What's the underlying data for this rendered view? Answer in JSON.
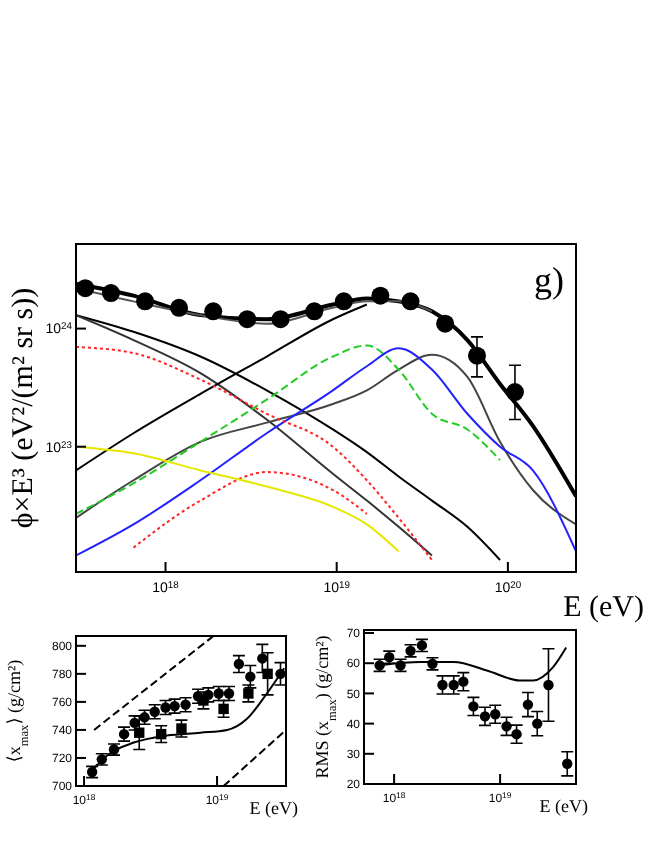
{
  "chart_data": [
    {
      "type": "line",
      "xlabel": "E (eV)",
      "ylabel": "ϕ×E³  (eV²/(m² sr s))",
      "annotations": [
        "g)"
      ],
      "log": "xy",
      "grid": false,
      "xlim": [
        3e+17,
        2.5e+20
      ],
      "ylim": [
        8.7e+21,
        5.2e+24
      ],
      "xticks": [
        {
          "value": 1e+18,
          "label": "10$^{18}$"
        },
        {
          "value": 1e+19,
          "label": "10$^{19}$"
        },
        {
          "value": 1e+20,
          "label": "10$^{20}$"
        }
      ],
      "yticks": [
        {
          "value": 1e+23,
          "label": "10$^{23}$"
        },
        {
          "value": 1e+24,
          "label": "10$^{24}$"
        }
      ],
      "x": [
        3e+17,
        6.5e+17,
        1.6e+18,
        3.9e+18,
        9.5e+18,
        1.5e+19,
        2.3e+19,
        3.6e+19,
        5.8e+19,
        9e+19,
        1.4e+20,
        2.5e+20
      ],
      "series": [
        {
          "color": "#000000",
          "values": [
            2.4e+24,
            1.9e+24,
            1.3e+24,
            1.2e+24,
            1.6e+24,
            1.8e+24,
            1.7e+24,
            1.4e+24,
            8e+23,
            3.4e+23,
            1.5e+23,
            3.8e+22
          ]
        },
        {
          "color": "#555555",
          "values": [
            2.2e+24,
            1.7e+24,
            1.3e+24,
            1.1e+24,
            1.5e+24,
            1.7e+24,
            1.7e+24,
            1.4e+24,
            null,
            null,
            null,
            null
          ]
        },
        {
          "color": "#000000",
          "values": [
            1.3e+24,
            9.4e+23,
            5.8e+23,
            3e+23,
            1.4e+23,
            9e+22,
            5.6e+22,
            3.5e+22,
            2.1e+22,
            1.1e+22,
            null,
            null
          ]
        },
        {
          "color": "#333333",
          "values": [
            1.3e+24,
            8e+23,
            4.2e+23,
            1.7e+23,
            5.9e+22,
            3.5e+22,
            2.1e+22,
            1.2e+22,
            null,
            null,
            null,
            null
          ]
        },
        {
          "color": "#000000",
          "values": [
            6.3e+22,
            1.3e+23,
            2.8e+23,
            5.8e+23,
            1.2e+24,
            1.6e+24,
            null,
            null,
            null,
            null,
            null,
            null
          ]
        },
        {
          "color": "#444444",
          "values": [
            2.5e+22,
            5.2e+22,
            1.1e+23,
            1.6e+23,
            2.3e+23,
            3e+23,
            4.5e+23,
            6e+23,
            3.9e+23,
            1.1e+23,
            4.3e+22,
            2.2e+22
          ]
        },
        {
          "color": "#22cc22",
          "line_style": "dashed",
          "values": [
            2.7e+22,
            4.9e+22,
            1.1e+23,
            2.5e+23,
            5.8e+23,
            7.2e+23,
            4.5e+23,
            1.9e+23,
            1.4e+23,
            7.7e+22,
            null,
            null
          ]
        },
        {
          "color": "#2222ff",
          "values": [
            1.2e+22,
            2.2e+22,
            5.2e+22,
            1.3e+23,
            3e+23,
            4.8e+23,
            6.8e+23,
            4.5e+23,
            1.9e+23,
            1e+23,
            6.3e+22,
            1.3e+22
          ]
        },
        {
          "color": "#ff2222",
          "line_style": "dotted",
          "values": [
            7e+23,
            6.2e+23,
            3.7e+23,
            1.9e+23,
            1e+23,
            5.2e+22,
            2.5e+22,
            1.1e+22,
            null,
            null,
            null,
            null
          ]
        },
        {
          "color": "#ff2222",
          "line_style": "dotted",
          "values": [
            null,
            1.4e+22,
            3.5e+22,
            6.1e+22,
            4.3e+22,
            2.7e+22,
            null,
            null,
            null,
            null,
            null,
            null
          ]
        },
        {
          "color": "#e6e600",
          "values": [
            1e+23,
            8.8e+22,
            6.3e+22,
            4.6e+22,
            3.1e+22,
            2.2e+22,
            1.3e+22,
            null,
            null,
            null,
            null,
            null
          ]
        },
        {
          "type": "scatter",
          "marker": "circle",
          "color": "#000000",
          "x": [
            3.4e+17,
            4.8e+17,
            7.6e+17,
            1.2e+18,
            1.9e+18,
            3e+18,
            4.7e+18,
            7.4e+18,
            1.1e+19,
            1.8e+19,
            2.7e+19,
            4.3e+19,
            6.6e+19,
            1.1e+20
          ],
          "values": [
            2.2e+24,
            2e+24,
            1.7e+24,
            1.5e+24,
            1.4e+24,
            1.2e+24,
            1.2e+24,
            1.4e+24,
            1.7e+24,
            1.9e+24,
            1.7e+24,
            1.1e+24,
            5.9e+23,
            2.9e+23
          ],
          "errors": [
            null,
            null,
            null,
            null,
            null,
            null,
            null,
            null,
            null,
            null,
            null,
            null,
            [
              3.9e+23,
              8.5e+23
            ],
            [
              1.7e+23,
              4.9e+23
            ]
          ]
        }
      ]
    },
    {
      "type": "line",
      "xlabel": "E (eV)",
      "ylabel": "⟨x$_{max}$⟩ (g/cm²)",
      "log": "x",
      "grid": false,
      "xlim": [
        8.7e+17,
        3.3e+19
      ],
      "ylim": [
        700,
        807
      ],
      "xticks": [
        {
          "value": 1e+18,
          "label": "10$^{18}$"
        },
        {
          "value": 1e+19,
          "label": "10$^{19}$"
        }
      ],
      "yticks": [
        700,
        720,
        740,
        760,
        780,
        800
      ],
      "series": [
        {
          "type": "scatter",
          "marker": "circle",
          "color": "#000000",
          "x": [
            1.15e+18,
            1.36e+18,
            1.68e+18,
            2e+18,
            2.4e+18,
            2.85e+18,
            3.4e+18,
            4.1e+18,
            4.8e+18,
            5.8e+18,
            7.2e+18,
            8.6e+18,
            1.03e+19,
            1.23e+19,
            1.46e+19,
            1.78e+19,
            2.19e+19,
            3e+19
          ],
          "values": [
            710,
            719,
            726,
            737,
            745,
            749,
            753,
            756,
            757,
            758,
            764,
            765,
            766,
            766,
            787,
            778,
            791,
            780
          ],
          "errors": [
            4,
            4,
            4,
            5,
            5,
            5,
            5,
            5,
            5,
            5,
            5,
            5,
            5,
            5,
            6,
            8,
            10,
            8
          ]
        },
        {
          "type": "scatter",
          "marker": "square",
          "color": "#000000",
          "x": [
            2.6e+18,
            3.8e+18,
            5.4e+18,
            7.9e+18,
            1.12e+19,
            1.72e+19,
            2.4e+19
          ],
          "values": [
            738,
            737,
            741,
            761,
            755,
            766,
            780
          ],
          "errors": [
            12,
            6,
            6,
            6,
            6,
            6,
            15
          ]
        },
        {
          "color": "#000000",
          "x": [
            1.15e+18,
            1.5e+18,
            2.37e+18,
            4.2e+18,
            7.5e+18,
            1.19e+19,
            1.68e+19,
            2.37e+19,
            3.2e+19
          ],
          "values": [
            711,
            722,
            731,
            736,
            738,
            740,
            748,
            766,
            784
          ]
        },
        {
          "color": "#000000",
          "line_style": "dashed",
          "x": [
            1.19e+18,
            9.4e+18
          ],
          "values": [
            740,
            807
          ]
        },
        {
          "color": "#000000",
          "line_style": "dashed",
          "x": [
            1.12e+19,
            3.3e+19
          ],
          "values": [
            700,
            740
          ]
        }
      ]
    },
    {
      "type": "line",
      "xlabel": "E (eV)",
      "ylabel": "RMS (x$_{max}$) (g/cm²)",
      "log": "x",
      "grid": false,
      "xlim": [
        5.2e+17,
        5.2e+19
      ],
      "ylim": [
        20,
        71
      ],
      "xticks": [
        {
          "value": 1e+18,
          "label": "10$^{18}$"
        },
        {
          "value": 1e+19,
          "label": "10$^{19}$"
        }
      ],
      "yticks": [
        20,
        30,
        40,
        50,
        60,
        70
      ],
      "series": [
        {
          "type": "scatter",
          "marker": "circle",
          "color": "#000000",
          "x": [
            7.3e+17,
            9e+17,
            1.15e+18,
            1.43e+18,
            1.83e+18,
            2.3e+18,
            2.86e+18,
            3.65e+18,
            4.5e+18,
            5.6e+18,
            7.2e+18,
            9e+18,
            1.15e+19,
            1.43e+19,
            1.83e+19,
            2.24e+19,
            2.86e+19,
            4.3e+19
          ],
          "values": [
            59.3,
            62,
            59.3,
            64.1,
            65.9,
            59.8,
            52.8,
            52.8,
            53.9,
            45.7,
            42.4,
            43.1,
            39.1,
            36.5,
            46.3,
            40,
            52.8,
            26.7
          ],
          "errors": [
            2,
            2,
            2,
            2,
            2,
            2,
            3,
            3,
            3,
            3,
            3,
            3,
            3,
            3,
            4,
            4,
            12,
            4
          ]
        },
        {
          "color": "#000000",
          "x": [
            7.3e+17,
            1.78e+18,
            3.65e+18,
            7.5e+18,
            1.54e+19,
            2.05e+19,
            3.16e+19,
            4.2e+19
          ],
          "values": [
            59.3,
            60.4,
            60.4,
            57.6,
            54.3,
            54.3,
            58.7,
            65.2
          ]
        }
      ]
    }
  ]
}
